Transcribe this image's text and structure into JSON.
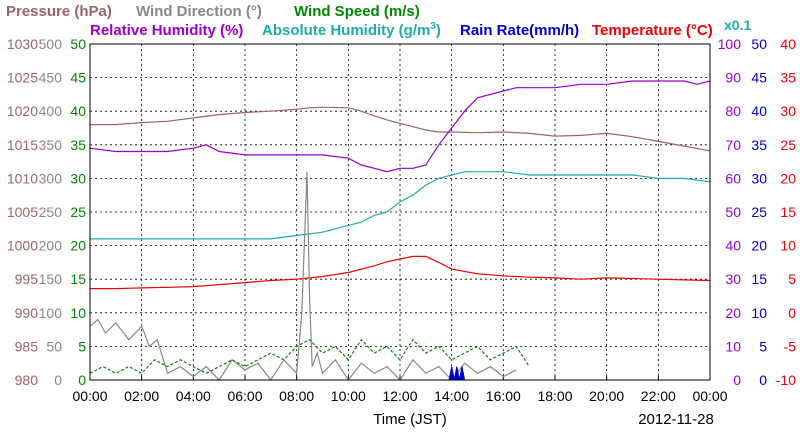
{
  "chart_data": {
    "type": "line",
    "date": "2012-11-28",
    "xlabel": "Time (JST)",
    "x_ticks": [
      "00:00",
      "02:00",
      "04:00",
      "06:00",
      "08:00",
      "10:00",
      "12:00",
      "14:00",
      "16:00",
      "18:00",
      "20:00",
      "22:00",
      "00:00"
    ],
    "x_range_hours": [
      0,
      24
    ],
    "grid": true,
    "legend": {
      "pressure": {
        "text": "Pressure (hPa)",
        "color": "#996666"
      },
      "wind_direction": {
        "text": "Wind Direction (°)",
        "color": "#888888"
      },
      "wind_speed": {
        "text": "Wind Speed (m/s)",
        "color": "#008800"
      },
      "relative_humidity": {
        "text": "Relative Humidity (%)",
        "color": "#9900cc"
      },
      "absolute_humidity_prefix": "Absolute Humidity (g/m",
      "absolute_humidity_sup": "3",
      "absolute_humidity_suffix": ")",
      "absolute_humidity_color": "#22aaaa",
      "rain_rate": {
        "text": "Rain Rate(mm/h)",
        "color": "#0000cc"
      },
      "temperature": {
        "text": "Temperature (°C)",
        "color": "#ee0000"
      },
      "scale_note": {
        "text": "x0.1",
        "color": "#22aaaa"
      }
    },
    "axes": {
      "pressure": {
        "ticks": [
          "980",
          "985",
          "990",
          "995",
          "1000",
          "1005",
          "1010",
          "1015",
          "1020",
          "1025",
          "1030"
        ],
        "range": [
          980,
          1030
        ],
        "color": "#996666"
      },
      "wind_direction": {
        "ticks": [
          "0",
          "50",
          "100",
          "150",
          "200",
          "250",
          "300",
          "350",
          "400",
          "450",
          "500"
        ],
        "range": [
          0,
          500
        ],
        "color": "#888888"
      },
      "wind_speed": {
        "ticks": [
          "0",
          "5",
          "10",
          "15",
          "20",
          "25",
          "30",
          "35",
          "40",
          "45",
          "50"
        ],
        "range": [
          0,
          50
        ],
        "color": "#008800"
      },
      "humidity": {
        "ticks": [
          "0",
          "10",
          "20",
          "30",
          "40",
          "50",
          "60",
          "70",
          "80",
          "90",
          "100"
        ],
        "range": [
          0,
          100
        ],
        "color": "#9900cc"
      },
      "rain_rate": {
        "ticks": [
          "0",
          "5",
          "10",
          "15",
          "20",
          "25",
          "30",
          "35",
          "40",
          "45",
          "50"
        ],
        "range": [
          0,
          50
        ],
        "color": "#0000cc"
      },
      "temperature": {
        "ticks": [
          "-10",
          "-5",
          "0",
          "5",
          "10",
          "15",
          "20",
          "25",
          "30",
          "35",
          "40"
        ],
        "range": [
          -10,
          40
        ],
        "color": "#ee0000"
      }
    },
    "series": [
      {
        "key": "pressure",
        "color": "#996666",
        "axis": "pressure",
        "x": [
          0,
          1,
          2,
          3,
          4,
          5,
          6,
          7,
          8,
          8.5,
          9,
          10,
          10.5,
          11,
          11.5,
          12,
          12.5,
          13,
          13.5,
          14,
          15,
          16,
          17,
          18,
          19,
          20,
          21,
          22,
          23,
          24
        ],
        "y": [
          1018.0,
          1018.0,
          1018.3,
          1018.5,
          1019.0,
          1019.5,
          1019.8,
          1020.0,
          1020.3,
          1020.5,
          1020.6,
          1020.5,
          1020.0,
          1019.3,
          1018.7,
          1018.2,
          1017.7,
          1017.2,
          1016.9,
          1016.9,
          1016.8,
          1016.9,
          1016.7,
          1016.3,
          1016.4,
          1016.7,
          1016.2,
          1015.5,
          1014.8,
          1014.1
        ]
      },
      {
        "key": "relative_humidity",
        "color": "#9900cc",
        "axis": "humidity",
        "x": [
          0,
          1,
          2,
          3,
          4,
          4.5,
          5,
          6,
          7,
          8,
          9,
          10,
          10.5,
          11,
          11.5,
          12,
          12.5,
          13,
          13.5,
          14,
          14.5,
          15,
          16,
          16.5,
          17,
          18,
          19,
          20,
          21,
          22,
          23,
          23.5,
          24
        ],
        "y": [
          69,
          68,
          68,
          68,
          69,
          70,
          68,
          67,
          67,
          67,
          67,
          66,
          64,
          63,
          62,
          63,
          63,
          64,
          70,
          75,
          80,
          84,
          86,
          87,
          87,
          87,
          88,
          88,
          89,
          89,
          89,
          88,
          89
        ]
      },
      {
        "key": "absolute_humidity",
        "color": "#22aaaa",
        "axis": "humidity",
        "x": [
          0,
          1,
          2,
          3,
          4,
          5,
          6,
          7,
          8,
          9,
          10,
          10.5,
          11,
          11.5,
          12,
          12.5,
          13,
          13.5,
          14,
          14.5,
          15,
          16,
          17,
          18,
          19,
          20,
          21,
          22,
          23,
          24
        ],
        "y": [
          42,
          42,
          42,
          42,
          42,
          42,
          42,
          42,
          43,
          44,
          46,
          47,
          49,
          50,
          53,
          55,
          58,
          60,
          61,
          62,
          62,
          62,
          61,
          61,
          61,
          61,
          61,
          60,
          60,
          59
        ]
      },
      {
        "key": "temperature",
        "color": "#ee0000",
        "axis": "temperature",
        "x": [
          0,
          1,
          2,
          3,
          4,
          5,
          6,
          7,
          8,
          9,
          10,
          11,
          11.5,
          12,
          12.5,
          13,
          13.5,
          14,
          15,
          16,
          17,
          18,
          19,
          20,
          21,
          22,
          23,
          24
        ],
        "y": [
          3.6,
          3.6,
          3.7,
          3.8,
          3.9,
          4.2,
          4.5,
          4.8,
          5.0,
          5.4,
          6.0,
          7.0,
          7.6,
          8.0,
          8.4,
          8.4,
          7.5,
          6.5,
          5.8,
          5.5,
          5.3,
          5.2,
          5.0,
          5.2,
          5.1,
          5.0,
          4.9,
          4.8
        ]
      },
      {
        "key": "wind_direction",
        "color": "#888888",
        "axis": "wind_direction",
        "x": [
          0,
          0.3,
          0.6,
          1.0,
          1.5,
          2.0,
          2.3,
          2.6,
          3.0,
          3.5,
          4.0,
          4.5,
          5.0,
          5.5,
          6.0,
          6.5,
          7.0,
          7.5,
          8.0,
          8.2,
          8.4,
          8.5,
          8.6,
          8.8,
          9.0,
          9.5,
          10.0,
          10.5,
          11.0,
          11.5,
          12.0,
          12.5,
          13.0,
          13.5,
          14.0,
          14.5,
          15.0,
          15.5,
          16.0,
          16.5
        ],
        "y": [
          80,
          90,
          70,
          85,
          60,
          80,
          50,
          60,
          10,
          20,
          5,
          20,
          0,
          30,
          15,
          25,
          0,
          30,
          10,
          100,
          310,
          120,
          20,
          40,
          10,
          30,
          0,
          25,
          10,
          20,
          0,
          30,
          10,
          20,
          0,
          25,
          10,
          20,
          5,
          15
        ]
      },
      {
        "key": "wind_speed",
        "color": "#008800",
        "axis": "wind_speed",
        "dashed": true,
        "x": [
          0,
          0.5,
          1,
          1.5,
          2,
          2.5,
          3,
          3.5,
          4,
          4.5,
          5,
          5.5,
          6,
          6.5,
          7,
          7.5,
          8,
          8.5,
          9,
          9.5,
          10,
          10.5,
          11,
          11.5,
          12,
          12.5,
          13,
          13.5,
          14,
          14.5,
          15,
          15.5,
          16,
          16.5,
          17
        ],
        "y": [
          1,
          2,
          1,
          2,
          1,
          3,
          2,
          3,
          2,
          1,
          2,
          3,
          2,
          3,
          4,
          3,
          5,
          6,
          4,
          5,
          3,
          6,
          4,
          5,
          3,
          6,
          4,
          5,
          3,
          4,
          5,
          3,
          4,
          5,
          2
        ]
      },
      {
        "key": "rain_rate",
        "color": "#0000cc",
        "axis": "rain_rate",
        "fill": true,
        "x": [
          13.9,
          14.0,
          14.1,
          14.2,
          14.3,
          14.4,
          14.5
        ],
        "y": [
          0,
          2,
          0,
          2,
          0,
          2,
          0
        ]
      }
    ]
  }
}
